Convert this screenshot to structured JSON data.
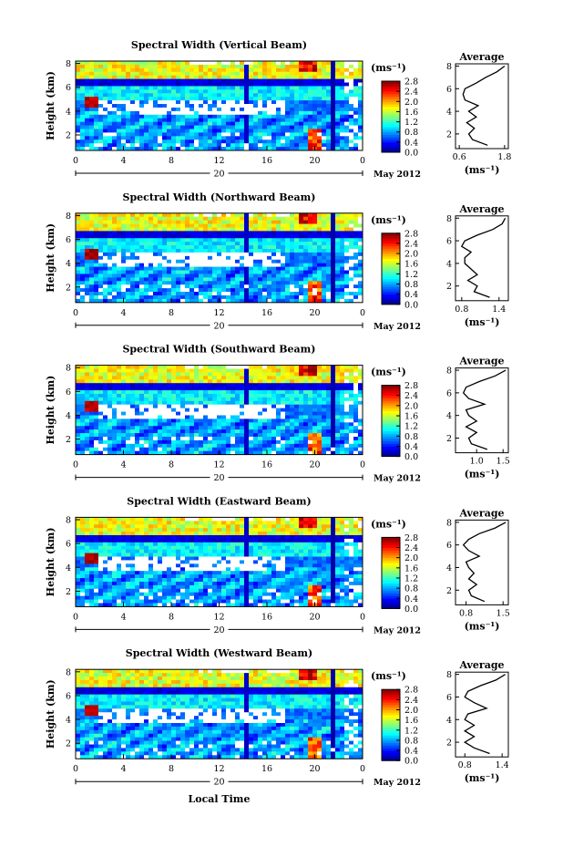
{
  "figure": {
    "xlabel": "Local Time",
    "date_label": "May 2012",
    "day_label": "20",
    "unit_label": "(ms⁻¹)",
    "avg_title": "Average",
    "y_label": "Height (km)"
  },
  "chart_data": [
    {
      "type": "heatmap",
      "title": "Spectral Width (Vertical Beam)",
      "xlabel": "Local Time",
      "ylabel": "Height (km)",
      "xticks": [
        "0",
        "4",
        "8",
        "12",
        "16",
        "20",
        "0"
      ],
      "xlim": [
        0,
        24
      ],
      "yticks": [
        "2",
        "4",
        "6",
        "8"
      ],
      "ylim": [
        0.7,
        8.2
      ],
      "colorbar": {
        "unit": "(ms⁻¹)",
        "ticks": [
          "0.0",
          "0.4",
          "0.8",
          "1.2",
          "1.6",
          "2.0",
          "2.4",
          "2.8"
        ],
        "range": [
          0,
          2.8
        ]
      },
      "average_profile": {
        "title": "Average",
        "xlabel": "(ms⁻¹)",
        "xticks": [
          "0.6",
          "1.8"
        ],
        "xlim": [
          0.5,
          1.9
        ],
        "yticks": [
          "2",
          "4",
          "6",
          "8"
        ],
        "height": [
          1.0,
          1.5,
          2.0,
          2.5,
          3.0,
          3.5,
          4.0,
          4.5,
          5.0,
          5.5,
          6.0,
          6.5,
          7.0,
          7.5,
          8.0
        ],
        "values": [
          1.35,
          0.95,
          0.85,
          1.0,
          0.8,
          1.05,
          0.85,
          1.1,
          0.75,
          0.7,
          0.75,
          1.05,
          1.3,
          1.6,
          1.8
        ]
      }
    },
    {
      "type": "heatmap",
      "title": "Spectral Width (Northward Beam)",
      "xlabel": "Local Time",
      "ylabel": "Height (km)",
      "xticks": [
        "0",
        "4",
        "8",
        "12",
        "16",
        "20",
        "0"
      ],
      "xlim": [
        0,
        24
      ],
      "yticks": [
        "2",
        "4",
        "6",
        "8"
      ],
      "ylim": [
        0.7,
        8.2
      ],
      "colorbar": {
        "unit": "(ms⁻¹)",
        "ticks": [
          "0.0",
          "0.4",
          "0.8",
          "1.2",
          "1.6",
          "2.0",
          "2.4",
          "2.8"
        ],
        "range": [
          0,
          2.8
        ]
      },
      "average_profile": {
        "title": "Average",
        "xlabel": "(ms⁻¹)",
        "xticks": [
          "0.8",
          "1.4"
        ],
        "xlim": [
          0.7,
          1.55
        ],
        "yticks": [
          "2",
          "4",
          "6",
          "8"
        ],
        "height": [
          1.0,
          1.5,
          2.0,
          2.5,
          3.0,
          3.5,
          4.0,
          4.5,
          5.0,
          5.5,
          6.0,
          6.5,
          7.0,
          7.5,
          8.0
        ],
        "values": [
          1.25,
          1.0,
          1.05,
          0.9,
          1.05,
          0.95,
          0.85,
          0.85,
          0.95,
          0.8,
          0.85,
          1.05,
          1.3,
          1.45,
          1.5
        ]
      }
    },
    {
      "type": "heatmap",
      "title": "Spectral Width (Southward Beam)",
      "xlabel": "Local Time",
      "ylabel": "Height (km)",
      "xticks": [
        "0",
        "4",
        "8",
        "12",
        "16",
        "20",
        "0"
      ],
      "xlim": [
        0,
        24
      ],
      "yticks": [
        "2",
        "4",
        "6",
        "8"
      ],
      "ylim": [
        0.7,
        8.2
      ],
      "colorbar": {
        "unit": "(ms⁻¹)",
        "ticks": [
          "0.0",
          "0.4",
          "0.8",
          "1.2",
          "1.6",
          "2.0",
          "2.4",
          "2.8"
        ],
        "range": [
          0,
          2.8
        ]
      },
      "average_profile": {
        "title": "Average",
        "xlabel": "(ms⁻¹)",
        "xticks": [
          "1.0",
          "1.5"
        ],
        "xlim": [
          0.6,
          1.6
        ],
        "yticks": [
          "2",
          "4",
          "6",
          "8"
        ],
        "height": [
          1.0,
          1.5,
          2.0,
          2.5,
          3.0,
          3.5,
          4.0,
          4.5,
          5.0,
          5.5,
          6.0,
          6.5,
          7.0,
          7.5,
          8.0
        ],
        "values": [
          1.2,
          0.9,
          0.85,
          1.0,
          0.8,
          1.0,
          0.85,
          0.8,
          1.15,
          0.85,
          0.75,
          0.8,
          1.05,
          1.35,
          1.55
        ]
      }
    },
    {
      "type": "heatmap",
      "title": "Spectral Width (Eastward Beam)",
      "xlabel": "Local Time",
      "ylabel": "Height (km)",
      "xticks": [
        "0",
        "4",
        "8",
        "12",
        "16",
        "20",
        "0"
      ],
      "xlim": [
        0,
        24
      ],
      "yticks": [
        "2",
        "4",
        "6",
        "8"
      ],
      "ylim": [
        0.7,
        8.2
      ],
      "colorbar": {
        "unit": "(ms⁻¹)",
        "ticks": [
          "0.0",
          "0.4",
          "0.8",
          "1.2",
          "1.6",
          "2.0",
          "2.4",
          "2.8"
        ],
        "range": [
          0,
          2.8
        ]
      },
      "average_profile": {
        "title": "Average",
        "xlabel": "(ms⁻¹)",
        "xticks": [
          "0.8",
          "1.5"
        ],
        "xlim": [
          0.6,
          1.6
        ],
        "yticks": [
          "2",
          "4",
          "6",
          "8"
        ],
        "height": [
          1.0,
          1.5,
          2.0,
          2.5,
          3.0,
          3.5,
          4.0,
          4.5,
          5.0,
          5.5,
          6.0,
          6.5,
          7.0,
          7.5,
          8.0
        ],
        "values": [
          1.15,
          0.9,
          0.85,
          1.0,
          0.85,
          0.95,
          0.85,
          0.8,
          1.05,
          0.85,
          0.75,
          0.85,
          1.05,
          1.35,
          1.55
        ]
      }
    },
    {
      "type": "heatmap",
      "title": "Spectral Width (Westward Beam)",
      "xlabel": "Local Time",
      "ylabel": "Height (km)",
      "xticks": [
        "0",
        "4",
        "8",
        "12",
        "16",
        "20",
        "0"
      ],
      "xlim": [
        0,
        24
      ],
      "yticks": [
        "2",
        "4",
        "6",
        "8"
      ],
      "ylim": [
        0.7,
        8.2
      ],
      "colorbar": {
        "unit": "(ms⁻¹)",
        "ticks": [
          "0.0",
          "0.4",
          "0.8",
          "1.2",
          "1.6",
          "2.0",
          "2.4",
          "2.8"
        ],
        "range": [
          0,
          2.8
        ]
      },
      "average_profile": {
        "title": "Average",
        "xlabel": "(ms⁻¹)",
        "xticks": [
          "0.8",
          "1.4"
        ],
        "xlim": [
          0.65,
          1.5
        ],
        "yticks": [
          "2",
          "4",
          "6",
          "8"
        ],
        "height": [
          1.0,
          1.5,
          2.0,
          2.5,
          3.0,
          3.5,
          4.0,
          4.5,
          5.0,
          5.5,
          6.0,
          6.5,
          7.0,
          7.5,
          8.0
        ],
        "values": [
          1.2,
          0.95,
          0.8,
          0.95,
          0.8,
          0.95,
          0.8,
          0.85,
          1.15,
          0.95,
          0.8,
          0.85,
          1.05,
          1.3,
          1.45
        ]
      }
    }
  ]
}
